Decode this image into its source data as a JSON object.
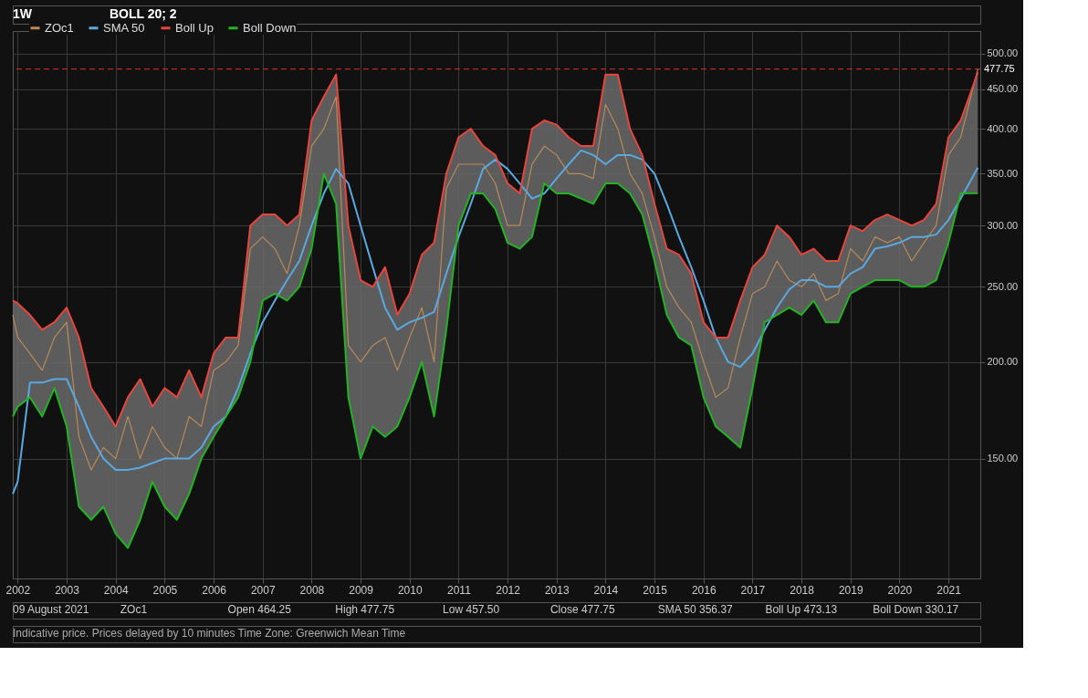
{
  "chart_data": {
    "type": "line",
    "title": "1W",
    "subtitle": "BOLL 20; 2",
    "x": [
      2001.9,
      2002.0,
      2002.25,
      2002.5,
      2002.75,
      2003.0,
      2003.25,
      2003.5,
      2003.75,
      2004.0,
      2004.25,
      2004.5,
      2004.75,
      2005.0,
      2005.25,
      2005.5,
      2005.75,
      2006.0,
      2006.25,
      2006.5,
      2006.75,
      2007.0,
      2007.25,
      2007.5,
      2007.75,
      2008.0,
      2008.25,
      2008.5,
      2008.75,
      2009.0,
      2009.25,
      2009.5,
      2009.75,
      2010.0,
      2010.25,
      2010.5,
      2010.75,
      2011.0,
      2011.25,
      2011.5,
      2011.75,
      2012.0,
      2012.25,
      2012.5,
      2012.75,
      2013.0,
      2013.25,
      2013.5,
      2013.75,
      2014.0,
      2014.25,
      2014.5,
      2014.75,
      2015.0,
      2015.25,
      2015.5,
      2015.75,
      2016.0,
      2016.25,
      2016.5,
      2016.75,
      2017.0,
      2017.25,
      2017.5,
      2017.75,
      2018.0,
      2018.25,
      2018.5,
      2018.75,
      2019.0,
      2019.25,
      2019.5,
      2019.75,
      2020.0,
      2020.25,
      2020.5,
      2020.75,
      2021.0,
      2021.25,
      2021.6
    ],
    "series": [
      {
        "name": "ZOc1",
        "color": "#b98a5a",
        "lower": [
          170,
          175,
          180,
          170,
          185,
          165,
          130,
          125,
          130,
          120,
          115,
          125,
          140,
          130,
          125,
          135,
          150,
          160,
          170,
          180,
          200,
          240,
          245,
          240,
          250,
          280,
          350,
          320,
          180,
          150,
          165,
          160,
          165,
          180,
          200,
          170,
          220,
          300,
          330,
          330,
          315,
          285,
          280,
          290,
          340,
          330,
          330,
          325,
          320,
          340,
          340,
          330,
          310,
          270,
          230,
          215,
          210,
          180,
          165,
          160,
          155,
          185,
          225,
          230,
          235,
          230,
          240,
          225,
          225,
          245,
          250,
          255,
          255,
          255,
          250,
          250,
          255,
          285,
          330,
          330.17
        ],
        "upper": [
          240,
          238,
          230,
          220,
          225,
          235,
          215,
          185,
          175,
          165,
          180,
          190,
          175,
          185,
          180,
          195,
          180,
          205,
          215,
          215,
          300,
          310,
          310,
          300,
          310,
          410,
          440,
          470,
          300,
          255,
          250,
          265,
          230,
          245,
          275,
          285,
          350,
          390,
          400,
          380,
          370,
          340,
          330,
          400,
          410,
          405,
          390,
          380,
          380,
          470,
          470,
          400,
          370,
          320,
          280,
          275,
          260,
          225,
          215,
          215,
          240,
          265,
          275,
          300,
          290,
          275,
          280,
          270,
          270,
          300,
          295,
          305,
          310,
          305,
          300,
          305,
          320,
          390,
          410,
          473.13
        ],
        "values": [
          230,
          215,
          205,
          195,
          215,
          225,
          160,
          145,
          155,
          150,
          170,
          150,
          165,
          155,
          150,
          170,
          165,
          195,
          200,
          210,
          280,
          290,
          280,
          260,
          300,
          380,
          400,
          440,
          210,
          200,
          210,
          215,
          195,
          215,
          235,
          200,
          335,
          360,
          360,
          360,
          340,
          300,
          300,
          360,
          380,
          370,
          350,
          350,
          345,
          430,
          400,
          350,
          330,
          290,
          250,
          235,
          225,
          200,
          180,
          185,
          215,
          245,
          250,
          270,
          255,
          250,
          260,
          240,
          245,
          280,
          270,
          290,
          285,
          290,
          270,
          285,
          300,
          370,
          390,
          477.75
        ]
      },
      {
        "name": "SMA 50",
        "color": "#5aa8e0",
        "values": [
          135,
          140,
          188,
          188,
          190,
          190,
          175,
          160,
          150,
          145,
          145,
          146,
          148,
          150,
          150,
          150,
          155,
          165,
          170,
          185,
          205,
          225,
          240,
          255,
          270,
          300,
          330,
          355,
          340,
          300,
          265,
          235,
          220,
          225,
          228,
          232,
          260,
          290,
          320,
          355,
          365,
          355,
          340,
          325,
          330,
          345,
          360,
          375,
          370,
          360,
          370,
          370,
          365,
          350,
          320,
          290,
          265,
          240,
          215,
          200,
          197,
          205,
          220,
          235,
          248,
          255,
          255,
          250,
          250,
          260,
          265,
          280,
          282,
          285,
          290,
          290,
          292,
          305,
          325,
          356.37
        ]
      },
      {
        "name": "Boll Up",
        "color": "#e8463c",
        "values": [
          240,
          238,
          230,
          220,
          225,
          235,
          215,
          185,
          175,
          165,
          180,
          190,
          175,
          185,
          180,
          195,
          180,
          205,
          215,
          215,
          300,
          310,
          310,
          300,
          310,
          410,
          440,
          470,
          300,
          255,
          250,
          265,
          230,
          245,
          275,
          285,
          350,
          390,
          400,
          380,
          370,
          340,
          330,
          400,
          410,
          405,
          390,
          380,
          380,
          470,
          470,
          400,
          370,
          320,
          280,
          275,
          260,
          225,
          215,
          215,
          240,
          265,
          275,
          300,
          290,
          275,
          280,
          270,
          270,
          300,
          295,
          305,
          310,
          305,
          300,
          305,
          320,
          390,
          410,
          473.13
        ]
      },
      {
        "name": "Boll Down",
        "color": "#22b422",
        "values": [
          170,
          175,
          180,
          170,
          185,
          165,
          130,
          125,
          130,
          120,
          115,
          125,
          140,
          130,
          125,
          135,
          150,
          160,
          170,
          180,
          200,
          240,
          245,
          240,
          250,
          280,
          350,
          320,
          180,
          150,
          165,
          160,
          165,
          180,
          200,
          170,
          220,
          300,
          330,
          330,
          315,
          285,
          280,
          290,
          340,
          330,
          330,
          325,
          320,
          340,
          340,
          330,
          310,
          270,
          230,
          215,
          210,
          180,
          165,
          160,
          155,
          185,
          225,
          230,
          235,
          230,
          240,
          225,
          225,
          245,
          250,
          255,
          255,
          255,
          250,
          250,
          255,
          285,
          330,
          330.17
        ]
      }
    ],
    "xlim": [
      2001.9,
      2021.65
    ],
    "xticks": [
      2002,
      2003,
      2004,
      2005,
      2006,
      2007,
      2008,
      2009,
      2010,
      2011,
      2012,
      2013,
      2014,
      2015,
      2016,
      2017,
      2018,
      2019,
      2020,
      2021
    ],
    "ylim": [
      105,
      535
    ],
    "log": "y",
    "yticks": [
      {
        "value": 150,
        "label": "150.00"
      },
      {
        "value": 200,
        "label": "200.00"
      },
      {
        "value": 250,
        "label": "250.00"
      },
      {
        "value": 300,
        "label": "300.00"
      },
      {
        "value": 350,
        "label": "350.00"
      },
      {
        "value": 400,
        "label": "400.00"
      },
      {
        "value": 450,
        "label": "450.00"
      },
      {
        "value": 500,
        "label": "500.00"
      }
    ],
    "ref_lines": [
      {
        "axis": "y",
        "value": 477.75,
        "label": "477.75",
        "color": "#e03030",
        "line_style": "dashed"
      }
    ],
    "grid": true,
    "legend": "top left",
    "annotations": [
      "09 August 2021",
      "ZOc1",
      "Open 464.25",
      "High 477.75",
      "Low 457.50",
      "Close 477.75",
      "SMA 50 356.37",
      "Boll Up 473.13",
      "Boll Down 330.17",
      "Indicative price. Prices delayed by 10 minutes    Time Zone: Greenwich Mean Time"
    ]
  }
}
